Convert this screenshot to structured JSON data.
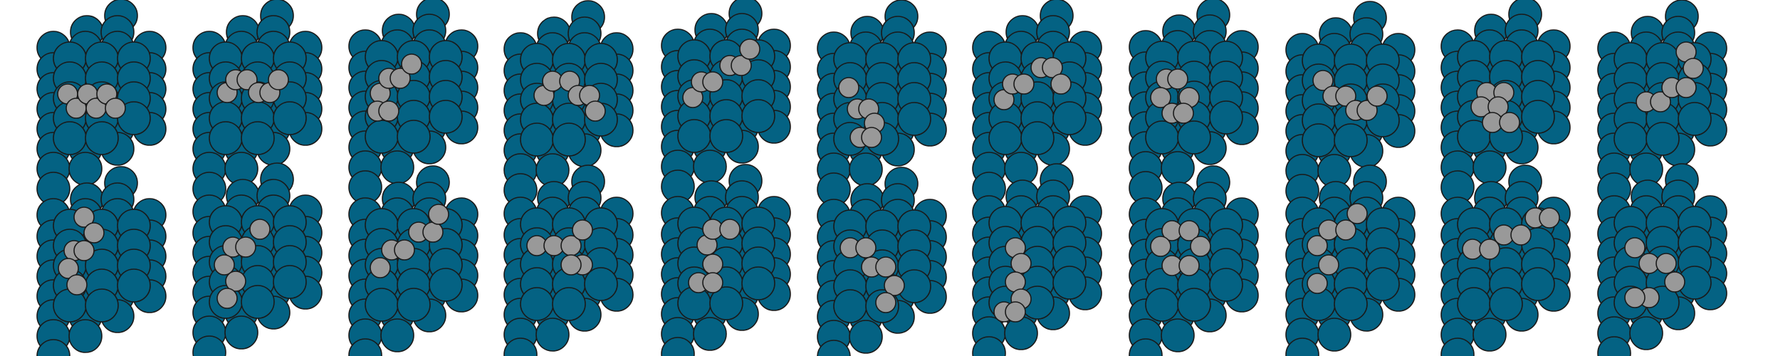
{
  "figure": {
    "columns": 11,
    "rows": 2,
    "colors": {
      "substrate": "#046283",
      "adatom": "#999999",
      "outline": "#1a1a1a",
      "background": "#ffffff"
    },
    "adatoms_per_panel": [
      6,
      6,
      6,
      6,
      6,
      6,
      6,
      6,
      6,
      6,
      6,
      6,
      6,
      6,
      6,
      6,
      6,
      6,
      6,
      6,
      6,
      6
    ]
  }
}
